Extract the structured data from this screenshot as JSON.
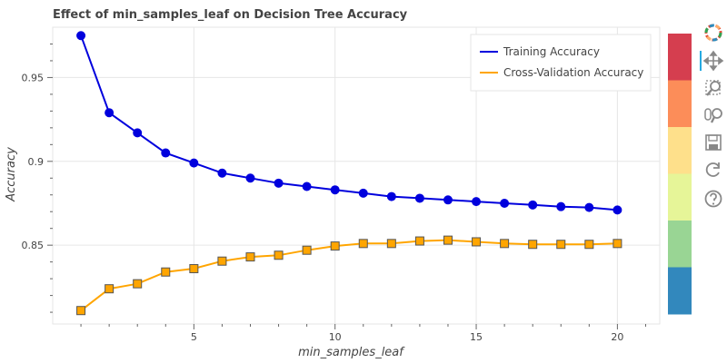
{
  "chart_data": {
    "type": "line",
    "title": "Effect of min_samples_leaf on Decision Tree Accuracy",
    "xlabel": "min_samples_leaf",
    "ylabel": "Accuracy",
    "x": [
      1,
      2,
      3,
      4,
      5,
      6,
      7,
      8,
      9,
      10,
      11,
      12,
      13,
      14,
      15,
      16,
      17,
      18,
      19,
      20
    ],
    "series": [
      {
        "name": "Training Accuracy",
        "color": "#0000dd",
        "marker": "circle",
        "values": [
          0.975,
          0.929,
          0.917,
          0.905,
          0.899,
          0.893,
          0.89,
          0.887,
          0.885,
          0.883,
          0.881,
          0.879,
          0.878,
          0.877,
          0.876,
          0.875,
          0.874,
          0.873,
          0.8725,
          0.871
        ]
      },
      {
        "name": "Cross-Validation Accuracy",
        "color": "#ffa500",
        "marker": "square",
        "values": [
          0.811,
          0.824,
          0.827,
          0.834,
          0.836,
          0.8405,
          0.843,
          0.844,
          0.847,
          0.8495,
          0.851,
          0.851,
          0.8525,
          0.853,
          0.852,
          0.851,
          0.8505,
          0.8505,
          0.8505,
          0.851
        ]
      }
    ],
    "xlim": [
      0,
      21.5
    ],
    "ylim": [
      0.803,
      0.98
    ],
    "xticks": [
      5,
      10,
      15,
      20
    ],
    "xtick_labels": [
      "5",
      "10",
      "15",
      "20"
    ],
    "yticks": [
      0.85,
      0.9,
      0.95
    ],
    "ytick_labels": [
      "0.85",
      "0.9",
      "0.95"
    ],
    "grid": true,
    "legend_position": "top-right"
  },
  "colorbar": {
    "colors": [
      "#d53e4f",
      "#fc8d59",
      "#fee08b",
      "#e6f598",
      "#99d594",
      "#3288bd"
    ]
  },
  "toolbar": {
    "tools": [
      {
        "name": "bokeh-logo-icon"
      },
      {
        "name": "pan-tool-icon"
      },
      {
        "name": "box-zoom-tool-icon"
      },
      {
        "name": "wheel-zoom-tool-icon"
      },
      {
        "name": "save-tool-icon"
      },
      {
        "name": "reset-tool-icon"
      },
      {
        "name": "help-tool-icon"
      }
    ]
  }
}
